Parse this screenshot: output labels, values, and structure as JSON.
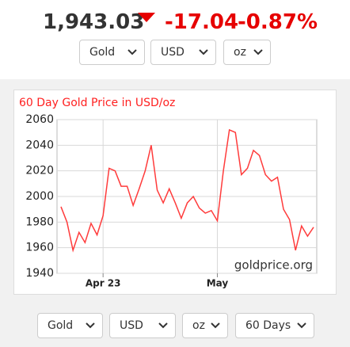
{
  "header": {
    "price": "1,943.03",
    "change": "-17.04",
    "change_percent": "-0.87%"
  },
  "top_selects": [
    "Gold",
    "USD",
    "oz"
  ],
  "chart_data": {
    "type": "line",
    "title": "60 Day Gold Price in USD/oz",
    "x": [
      0,
      1,
      2,
      3,
      4,
      5,
      6,
      7,
      8,
      9,
      10,
      11,
      12,
      13,
      14,
      15,
      16,
      17,
      18,
      19,
      20,
      21,
      22,
      23,
      24,
      25,
      26,
      27,
      28,
      29,
      30,
      31,
      32,
      33,
      34,
      35,
      36,
      37,
      38,
      39,
      40,
      41,
      42
    ],
    "values": [
      1992,
      1980,
      1958,
      1972,
      1964,
      1979,
      1970,
      1985,
      2022,
      2020,
      2008,
      2008,
      1993,
      2006,
      2020,
      2040,
      2005,
      1995,
      2006,
      1995,
      1983,
      1995,
      2000,
      1991,
      1987,
      1989,
      1981,
      2020,
      2052,
      2050,
      2017,
      2022,
      2036,
      2032,
      2017,
      2012,
      2015,
      1990,
      1982,
      1958,
      1977,
      1969,
      1976
    ],
    "color": "#ff3b3b",
    "xlim": [
      0,
      42
    ],
    "xticks": [
      {
        "value": 7,
        "label": "Apr 23"
      },
      {
        "value": 26,
        "label": "May"
      }
    ],
    "ylim": [
      1940,
      2060
    ],
    "yticks": [
      1940,
      1960,
      1980,
      2000,
      2020,
      2040,
      2060
    ],
    "grid": true
  },
  "watermark": "goldprice.org",
  "bottom_selects": [
    "Gold",
    "USD",
    "oz",
    "60 Days"
  ]
}
